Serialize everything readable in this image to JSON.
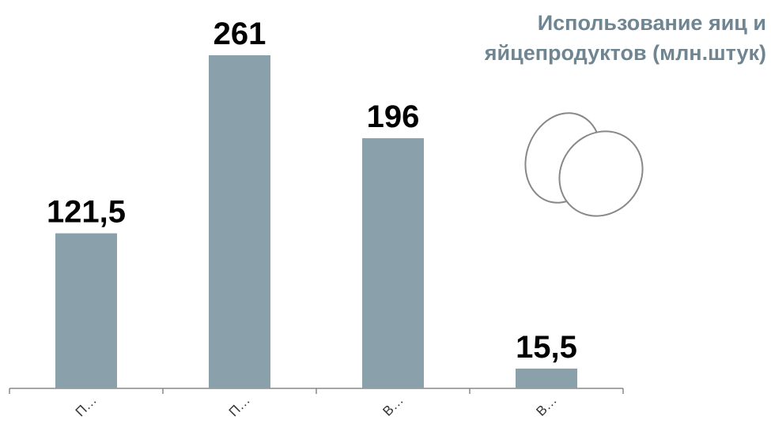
{
  "chart_data": {
    "type": "bar",
    "title": "Использование яиц и яйцепродуктов (млн.штук)",
    "categories": [
      "П…",
      "П…",
      "В…",
      "В…"
    ],
    "values": [
      121.5,
      261,
      196,
      15.5
    ],
    "value_labels": [
      "121,5",
      "261",
      "196",
      "15,5"
    ],
    "color": "#8aa0ab"
  }
}
